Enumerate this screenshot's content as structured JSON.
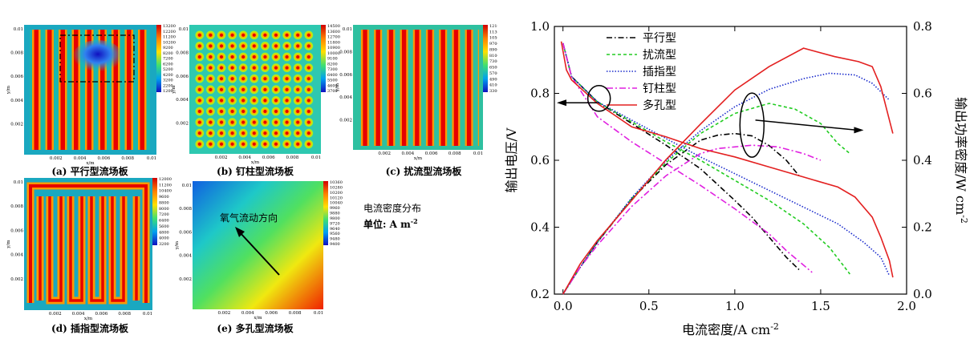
{
  "panels": {
    "a": {
      "caption": "(a) 平行型流场板",
      "colorbar": [
        "13200",
        "12200",
        "11200",
        "10200",
        "9200",
        "8200",
        "7200",
        "6200",
        "5200",
        "4200",
        "3200",
        "2200",
        "1200"
      ]
    },
    "b": {
      "caption": "(b) 钉柱型流场板",
      "colorbar": [
        "14500",
        "13600",
        "12700",
        "11800",
        "10900",
        "10000",
        "9100",
        "8200",
        "7300",
        "6400",
        "5500",
        "4600",
        "3700"
      ]
    },
    "c": {
      "caption": "(c) 扰流型流场板",
      "colorbar": [
        "12100",
        "11300",
        "10500",
        "9700",
        "8900",
        "8100",
        "7300",
        "6500",
        "5700",
        "4900",
        "4100",
        "3300"
      ]
    },
    "d": {
      "caption": "(d) 插指型流场板",
      "colorbar": [
        "12000",
        "11200",
        "10400",
        "9600",
        "8800",
        "8000",
        "7200",
        "6400",
        "5600",
        "4800",
        "4000",
        "3200"
      ]
    },
    "e": {
      "caption": "(e) 多孔型流场板",
      "colorbar": [
        "10360",
        "10280",
        "10200",
        "10120",
        "10040",
        "9960",
        "9880",
        "9800",
        "9720",
        "9640",
        "9560",
        "9480",
        "9400"
      ],
      "arrow_label": "氧气流动方向"
    },
    "xticks": [
      "0.002",
      "0.004",
      "0.006",
      "0.008",
      "0.01"
    ],
    "yticks": [
      "0.01",
      "0.008",
      "0.006",
      "0.004",
      "0.002"
    ],
    "xlabel": "x/m",
    "ylabel": "y/m",
    "legend_title": "电流密度分布",
    "legend_unit": "单位: A m",
    "legend_unit_sup": "-2"
  },
  "chart_data": {
    "type": "line",
    "xlabel": "电流密度/A cm",
    "xlabel_sup": "-2",
    "ylabel": "输出电压/V",
    "y2label": "输出功率密度/W cm",
    "y2label_sup": "-2",
    "xlim": [
      -0.05,
      2.0
    ],
    "ylim": [
      0.2,
      1.0
    ],
    "y2lim": [
      0.0,
      0.8
    ],
    "xticks": [
      "0.0",
      "0.5",
      "1.0",
      "1.5",
      "2.0"
    ],
    "yticks": [
      "0.2",
      "0.4",
      "0.6",
      "0.8",
      "1.0"
    ],
    "y2ticks": [
      "0.0",
      "0.2",
      "0.4",
      "0.6",
      "0.8"
    ],
    "legend_position": "top-left",
    "series": [
      {
        "name": "平行型",
        "color": "#000000",
        "dash": "7,3,1.5,3",
        "voltage": [
          [
            0,
            0.95
          ],
          [
            0.05,
            0.85
          ],
          [
            0.2,
            0.775
          ],
          [
            0.4,
            0.71
          ],
          [
            0.6,
            0.645
          ],
          [
            0.8,
            0.575
          ],
          [
            1.0,
            0.48
          ],
          [
            1.1,
            0.43
          ],
          [
            1.2,
            0.37
          ],
          [
            1.3,
            0.31
          ],
          [
            1.38,
            0.27
          ]
        ],
        "power": [
          [
            0,
            0
          ],
          [
            0.1,
            0.08
          ],
          [
            0.2,
            0.155
          ],
          [
            0.4,
            0.284
          ],
          [
            0.6,
            0.387
          ],
          [
            0.8,
            0.46
          ],
          [
            0.9,
            0.475
          ],
          [
            1.0,
            0.48
          ],
          [
            1.1,
            0.473
          ],
          [
            1.2,
            0.444
          ],
          [
            1.3,
            0.4
          ],
          [
            1.38,
            0.35
          ]
        ]
      },
      {
        "name": "扰流型",
        "color": "#22cc22",
        "dash": "4,3",
        "voltage": [
          [
            0,
            0.95
          ],
          [
            0.05,
            0.85
          ],
          [
            0.2,
            0.775
          ],
          [
            0.4,
            0.715
          ],
          [
            0.6,
            0.655
          ],
          [
            0.8,
            0.6
          ],
          [
            1.0,
            0.54
          ],
          [
            1.2,
            0.48
          ],
          [
            1.4,
            0.41
          ],
          [
            1.55,
            0.34
          ],
          [
            1.67,
            0.26
          ]
        ],
        "power": [
          [
            0,
            0
          ],
          [
            0.1,
            0.08
          ],
          [
            0.2,
            0.155
          ],
          [
            0.4,
            0.286
          ],
          [
            0.6,
            0.393
          ],
          [
            0.8,
            0.48
          ],
          [
            1.0,
            0.54
          ],
          [
            1.2,
            0.57
          ],
          [
            1.35,
            0.553
          ],
          [
            1.5,
            0.51
          ],
          [
            1.6,
            0.45
          ],
          [
            1.67,
            0.42
          ]
        ]
      },
      {
        "name": "插指型",
        "color": "#1a2bcc",
        "dash": "1.5,2",
        "voltage": [
          [
            0,
            0.95
          ],
          [
            0.05,
            0.85
          ],
          [
            0.2,
            0.775
          ],
          [
            0.4,
            0.72
          ],
          [
            0.6,
            0.665
          ],
          [
            0.8,
            0.61
          ],
          [
            1.0,
            0.56
          ],
          [
            1.2,
            0.51
          ],
          [
            1.4,
            0.46
          ],
          [
            1.6,
            0.41
          ],
          [
            1.75,
            0.355
          ],
          [
            1.85,
            0.31
          ],
          [
            1.9,
            0.255
          ]
        ],
        "power": [
          [
            0,
            0
          ],
          [
            0.1,
            0.08
          ],
          [
            0.2,
            0.155
          ],
          [
            0.4,
            0.288
          ],
          [
            0.6,
            0.399
          ],
          [
            0.8,
            0.488
          ],
          [
            1.0,
            0.56
          ],
          [
            1.2,
            0.612
          ],
          [
            1.4,
            0.644
          ],
          [
            1.55,
            0.66
          ],
          [
            1.7,
            0.655
          ],
          [
            1.8,
            0.63
          ],
          [
            1.9,
            0.58
          ]
        ]
      },
      {
        "name": "钉柱型",
        "color": "#e020e0",
        "dash": "8,3,2,3",
        "voltage": [
          [
            0,
            0.95
          ],
          [
            0.05,
            0.85
          ],
          [
            0.2,
            0.73
          ],
          [
            0.4,
            0.655
          ],
          [
            0.6,
            0.59
          ],
          [
            0.8,
            0.525
          ],
          [
            1.0,
            0.455
          ],
          [
            1.2,
            0.38
          ],
          [
            1.3,
            0.33
          ],
          [
            1.45,
            0.265
          ]
        ],
        "power": [
          [
            0,
            0
          ],
          [
            0.1,
            0.08
          ],
          [
            0.2,
            0.146
          ],
          [
            0.4,
            0.262
          ],
          [
            0.6,
            0.354
          ],
          [
            0.8,
            0.42
          ],
          [
            0.9,
            0.435
          ],
          [
            1.0,
            0.44
          ],
          [
            1.1,
            0.445
          ],
          [
            1.25,
            0.44
          ],
          [
            1.4,
            0.42
          ],
          [
            1.5,
            0.4
          ]
        ]
      },
      {
        "name": "多孔型",
        "color": "#e32020",
        "dash": "",
        "voltage": [
          [
            -0.01,
            0.955
          ],
          [
            0.02,
            0.87
          ],
          [
            0.05,
            0.84
          ],
          [
            0.2,
            0.77
          ],
          [
            0.4,
            0.7
          ],
          [
            0.6,
            0.67
          ],
          [
            0.8,
            0.635
          ],
          [
            1.0,
            0.61
          ],
          [
            1.2,
            0.58
          ],
          [
            1.4,
            0.55
          ],
          [
            1.6,
            0.52
          ],
          [
            1.7,
            0.49
          ],
          [
            1.8,
            0.43
          ],
          [
            1.85,
            0.37
          ],
          [
            1.9,
            0.3
          ],
          [
            1.92,
            0.25
          ]
        ],
        "power": [
          [
            0,
            0
          ],
          [
            0.1,
            0.09
          ],
          [
            0.2,
            0.16
          ],
          [
            0.4,
            0.28
          ],
          [
            0.6,
            0.402
          ],
          [
            0.8,
            0.508
          ],
          [
            1.0,
            0.61
          ],
          [
            1.2,
            0.68
          ],
          [
            1.4,
            0.735
          ],
          [
            1.58,
            0.71
          ],
          [
            1.72,
            0.695
          ],
          [
            1.8,
            0.68
          ],
          [
            1.85,
            0.62
          ],
          [
            1.92,
            0.48
          ]
        ]
      }
    ]
  }
}
